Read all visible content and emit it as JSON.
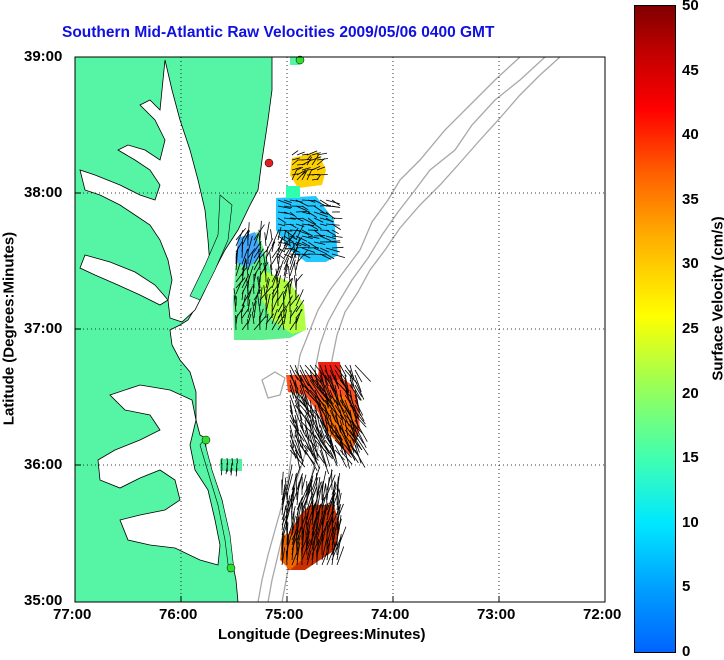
{
  "title": "Southern Mid-Atlantic Raw Velocities 2009/05/06 0400 GMT",
  "axes": {
    "xlabel": "Longitude (Degrees:Minutes)",
    "ylabel": "Latitude (Degrees:Minutes)",
    "xticks": [
      "77:00",
      "76:00",
      "75:00",
      "74:00",
      "73:00",
      "72:00"
    ],
    "yticks": [
      "39:00",
      "38:00",
      "37:00",
      "36:00",
      "35:00"
    ],
    "xrange": [
      -77,
      -72
    ],
    "yrange": [
      35,
      39
    ]
  },
  "colorbar": {
    "label": "Surface Velocity (cm/s)",
    "ticks": [
      "50",
      "45",
      "40",
      "35",
      "30",
      "25",
      "20",
      "15",
      "10",
      "5",
      "0"
    ],
    "range": [
      0,
      50
    ]
  },
  "colors": {
    "land": "#55f5a5",
    "title": "#1010e0",
    "bathymetry": "#a8a8a8"
  }
}
